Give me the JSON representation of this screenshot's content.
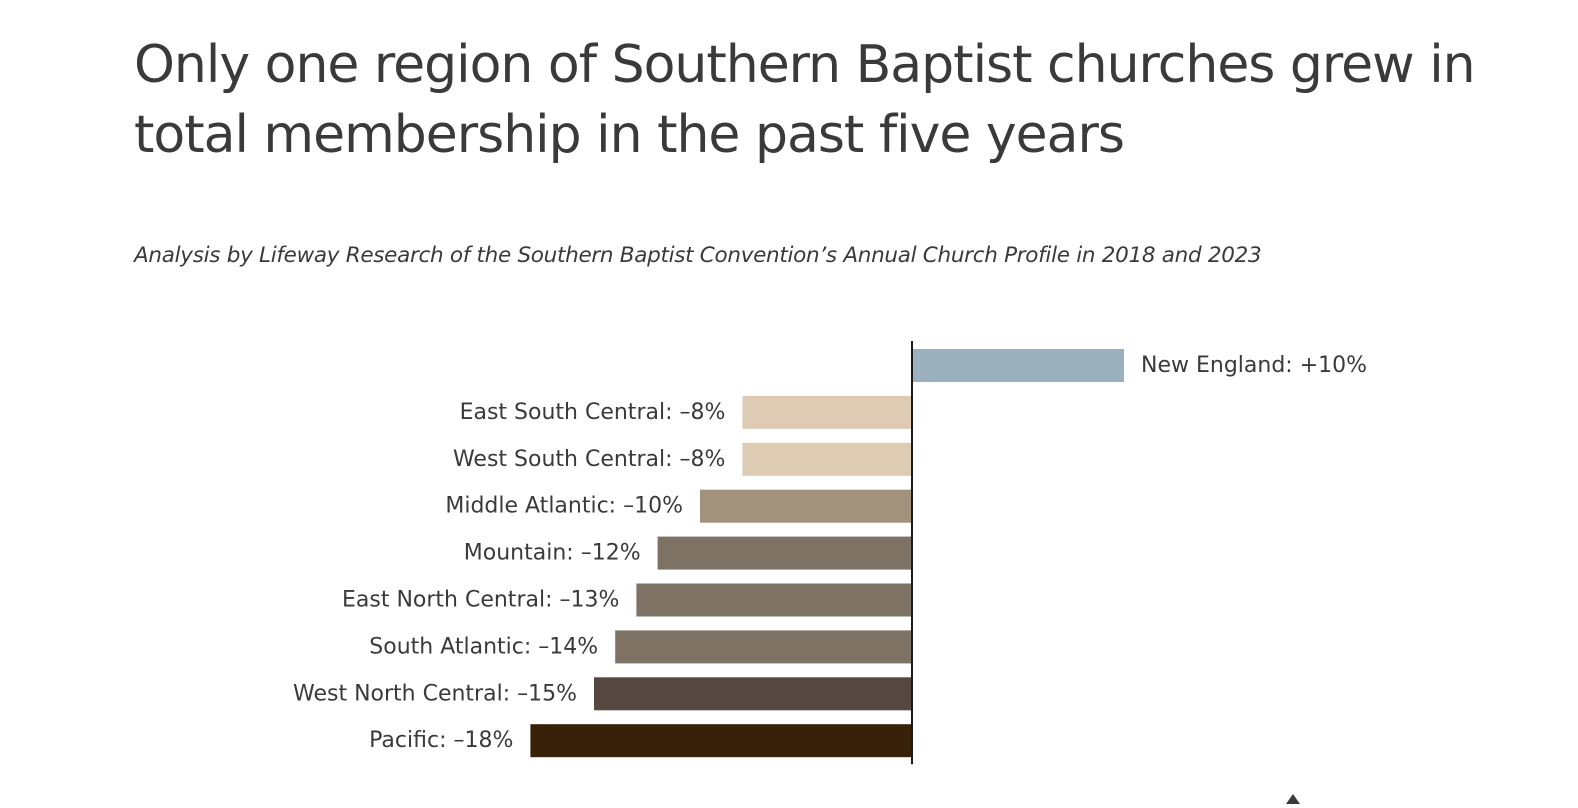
{
  "title": "Only one region of Southern Baptist churches grew in total membership in the past five years",
  "subtitle": "Analysis by Lifeway Research of the Southern Baptist Convention’s Annual Church Profile in 2018 and 2023",
  "chart_data": {
    "type": "bar",
    "orientation": "horizontal",
    "title": "Only one region of Southern Baptist churches grew in total membership in the past five years",
    "subtitle": "Analysis by Lifeway Research of the Southern Baptist Convention’s Annual Church Profile in 2018 and 2023",
    "xlabel": "",
    "ylabel": "",
    "categories": [
      "New England",
      "East South Central",
      "West South Central",
      "Middle Atlantic",
      "Mountain",
      "East North Central",
      "South Atlantic",
      "West North Central",
      "Pacific"
    ],
    "values": [
      10,
      -8,
      -8,
      -10,
      -12,
      -13,
      -14,
      -15,
      -18
    ],
    "data_labels": [
      "New England: +10%",
      "East South Central: –8%",
      "West South Central: –8%",
      "Middle Atlantic: –10%",
      "Mountain: –12%",
      "East North Central: –13%",
      "South Atlantic: –14%",
      "West North Central: –15%",
      "Pacific: –18%"
    ],
    "colors": [
      "#9bb1bd",
      "#ddccb3",
      "#ddccb3",
      "#a2917d",
      "#7e7264",
      "#7e7264",
      "#7e7264",
      "#564840",
      "#382109"
    ],
    "unit": "%",
    "grid": false,
    "legend": "none",
    "zero_line_color": "#1a1a1a"
  }
}
